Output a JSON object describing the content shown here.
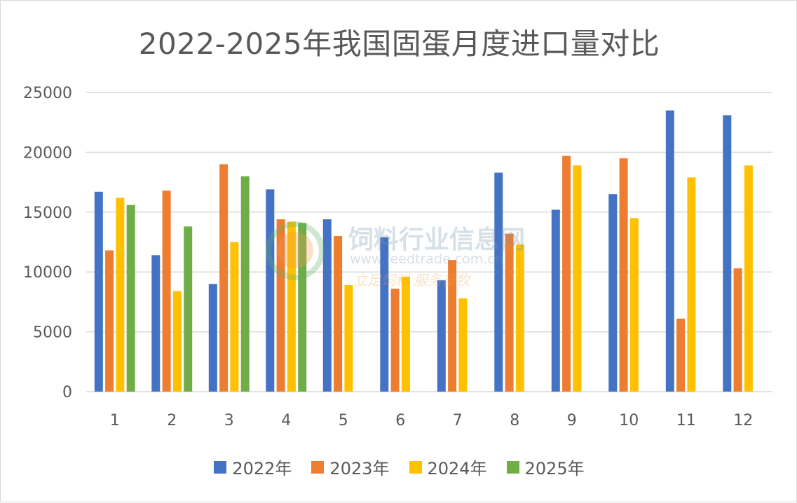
{
  "chart_data": {
    "type": "bar",
    "title": "2022-2025年我国固蛋月度进口量对比",
    "xlabel": "",
    "ylabel": "",
    "ylim": [
      0,
      25000
    ],
    "yticks": [
      0,
      5000,
      10000,
      15000,
      20000,
      25000
    ],
    "grid": true,
    "legend_position": "bottom",
    "categories": [
      "1",
      "2",
      "3",
      "4",
      "5",
      "6",
      "7",
      "8",
      "9",
      "10",
      "11",
      "12"
    ],
    "series": [
      {
        "name": "2022年",
        "color": "#4472c4",
        "values": [
          16700,
          11400,
          9000,
          16900,
          14400,
          12900,
          9300,
          18300,
          15200,
          16500,
          23500,
          23100
        ]
      },
      {
        "name": "2023年",
        "color": "#ed7d31",
        "values": [
          11800,
          16800,
          19000,
          14400,
          13000,
          8600,
          11000,
          13200,
          19700,
          19500,
          6100,
          10300
        ]
      },
      {
        "name": "2024年",
        "color": "#ffc000",
        "values": [
          16200,
          8400,
          12500,
          14200,
          8900,
          9600,
          7800,
          12300,
          18900,
          14500,
          17900,
          18900
        ]
      },
      {
        "name": "2025年",
        "color": "#70ad47",
        "values": [
          15600,
          13800,
          18000,
          14100,
          null,
          null,
          null,
          null,
          null,
          null,
          null,
          null
        ]
      }
    ]
  },
  "watermark": {
    "name": "饲料行业信息网",
    "url": "www.feedtrade.com.cn",
    "slogan": "立足饲料 服务畜牧",
    "logo_icon": "wheat-logo-icon"
  }
}
